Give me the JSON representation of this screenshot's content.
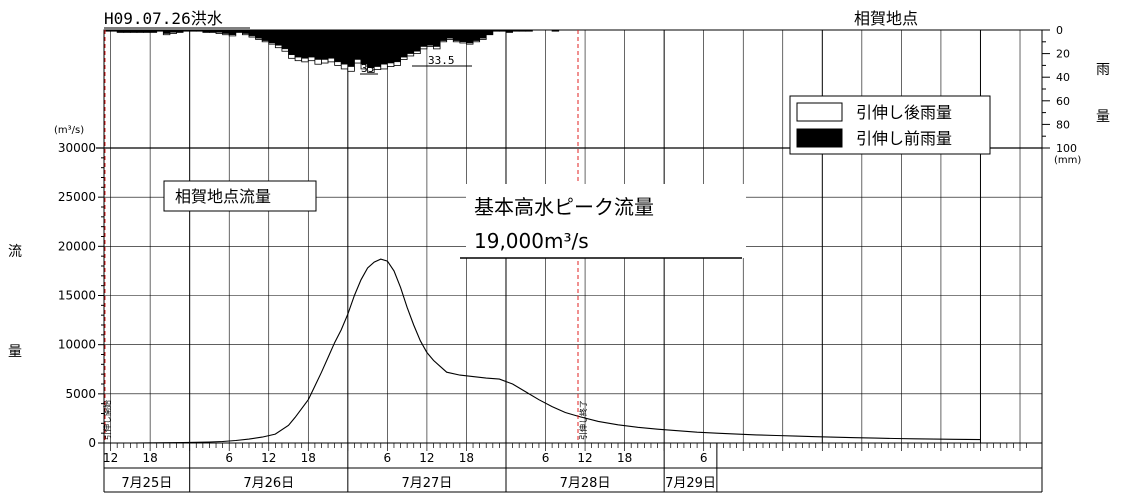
{
  "chart_data": {
    "type": "line",
    "title_left": "H09.07.26洪水",
    "title_right": "相賀地点",
    "flow": {
      "unit_label": "(m³/s)",
      "ylabel_chars": [
        "流",
        "量"
      ],
      "ylim": [
        0,
        30000
      ],
      "ticks": [
        0,
        5000,
        10000,
        15000,
        20000,
        25000,
        30000
      ],
      "tick_labels": [
        "0",
        "5000",
        "10000",
        "15000",
        "20000",
        "25000",
        "30000"
      ],
      "series_name": "相賀地点流量",
      "x_hours": [
        0,
        4,
        8,
        12,
        16,
        18,
        20,
        22,
        24,
        26,
        28,
        29,
        30,
        31,
        32,
        33,
        34,
        35,
        36,
        37,
        38,
        39,
        40,
        41,
        42,
        43,
        44,
        45,
        46,
        47,
        48,
        49,
        50,
        51,
        52,
        54,
        56,
        58,
        60,
        62,
        64,
        66,
        68,
        70,
        72,
        75,
        78,
        81,
        84,
        87,
        90,
        93,
        96,
        99,
        102,
        105,
        108,
        111,
        114,
        117,
        120,
        123,
        126,
        129,
        133
      ],
      "values": [
        0,
        0,
        20,
        50,
        100,
        150,
        250,
        400,
        600,
        900,
        1800,
        2600,
        3500,
        4400,
        5800,
        7200,
        8700,
        10200,
        11500,
        13100,
        15000,
        16600,
        17800,
        18400,
        18700,
        18500,
        17500,
        15800,
        13800,
        12000,
        10400,
        9200,
        8400,
        7800,
        7200,
        6900,
        6750,
        6600,
        6500,
        6000,
        5200,
        4400,
        3700,
        3100,
        2700,
        2200,
        1850,
        1600,
        1400,
        1250,
        1100,
        1000,
        900,
        820,
        760,
        700,
        640,
        590,
        540,
        500,
        460,
        430,
        400,
        380,
        350
      ]
    },
    "rain": {
      "ylabel_chars": [
        "雨",
        "量"
      ],
      "unit": "(mm)",
      "ylim": [
        0,
        100
      ],
      "ticks": [
        0,
        20,
        40,
        60,
        80,
        100
      ],
      "tick_labels": [
        "0",
        "20",
        "40",
        "60",
        "80",
        "100"
      ],
      "legend_after": "引伸し後雨量",
      "legend_before": "引伸し前雨量",
      "after": [
        1,
        1,
        1,
        1,
        1,
        1,
        1,
        1,
        1,
        1,
        1,
        1,
        1,
        2,
        2,
        2,
        2,
        2,
        2,
        1,
        4,
        3,
        2,
        1,
        1,
        1,
        2,
        2,
        3,
        4,
        5,
        2,
        4,
        6,
        8,
        10,
        12,
        15,
        18,
        24,
        26,
        27,
        26,
        29,
        28,
        27,
        30,
        33,
        35,
        28,
        33,
        36,
        33.5,
        33,
        31,
        30,
        25,
        22,
        20,
        16,
        14,
        16,
        10,
        8,
        10,
        11,
        12,
        10,
        8,
        4,
        1,
        1,
        2,
        1,
        1,
        1,
        0,
        0,
        0,
        1,
        0,
        0,
        0,
        0,
        0,
        0,
        0,
        0,
        0,
        0,
        0,
        0,
        0,
        0,
        0,
        0,
        0,
        0,
        0,
        0,
        0,
        0,
        0,
        0,
        0,
        0,
        0,
        0,
        0,
        0,
        0,
        0,
        0,
        0,
        0,
        0,
        0,
        0,
        0,
        0,
        0,
        0,
        0,
        0,
        0,
        0,
        0,
        0,
        0,
        0,
        0,
        0,
        0
      ],
      "before": [
        1,
        1,
        1,
        1,
        1,
        1,
        1,
        1,
        1,
        1,
        1,
        1,
        1,
        2,
        2,
        2,
        2,
        2,
        2,
        1,
        3,
        2,
        2,
        1,
        1,
        1,
        2,
        2,
        2,
        3,
        4,
        2,
        3,
        5,
        7,
        9,
        11,
        13,
        16,
        21,
        23,
        24,
        23,
        25,
        25,
        24,
        27,
        29,
        31,
        25,
        29,
        32,
        31,
        29,
        28,
        27,
        23,
        20,
        18,
        14,
        13,
        14,
        9,
        7,
        9,
        10,
        11,
        9,
        7,
        4,
        1,
        1,
        2,
        1,
        1,
        1,
        0,
        0,
        0,
        1,
        0,
        0,
        0,
        0,
        0,
        0,
        0,
        0,
        0,
        0,
        0,
        0,
        0,
        0,
        0,
        0,
        0,
        0,
        0,
        0,
        0,
        0,
        0,
        0,
        0,
        0,
        0,
        0,
        0,
        0,
        0,
        0,
        0,
        0,
        0,
        0,
        0,
        0,
        0,
        0,
        0,
        0,
        0,
        0,
        0,
        0,
        0,
        0,
        0,
        0,
        0,
        0,
        0,
        0
      ],
      "peak_labels": [
        "33",
        "33.5"
      ]
    },
    "x_axis": {
      "hour_ticks": [
        {
          "label": "12",
          "h": 1
        },
        {
          "label": "18",
          "h": 7
        },
        {
          "label": "6",
          "h": 19
        },
        {
          "label": "12",
          "h": 25
        },
        {
          "label": "18",
          "h": 31
        },
        {
          "label": "6",
          "h": 43
        },
        {
          "label": "12",
          "h": 49
        },
        {
          "label": "18",
          "h": 55
        },
        {
          "label": "6",
          "h": 67
        },
        {
          "label": "12",
          "h": 73
        },
        {
          "label": "18",
          "h": 79
        },
        {
          "label": "6",
          "h": 91
        }
      ],
      "days": [
        {
          "label": "7月25日",
          "start": -11,
          "end": 13
        },
        {
          "label": "7月26日",
          "start": 13,
          "end": 37
        },
        {
          "label": "7月27日",
          "start": 37,
          "end": 61
        },
        {
          "label": "7月28日",
          "start": 61,
          "end": 85
        },
        {
          "label": "7月29日",
          "start": 85,
          "end": 93
        }
      ]
    },
    "annotations": {
      "station_label": "相賀地点流量",
      "peak_line1": "基本高水ピーク流量",
      "peak_line2": "19,000m³/s",
      "stretch_start": "引伸し開始",
      "stretch_end": "引伸し終了"
    },
    "legend_position": "top-right"
  }
}
